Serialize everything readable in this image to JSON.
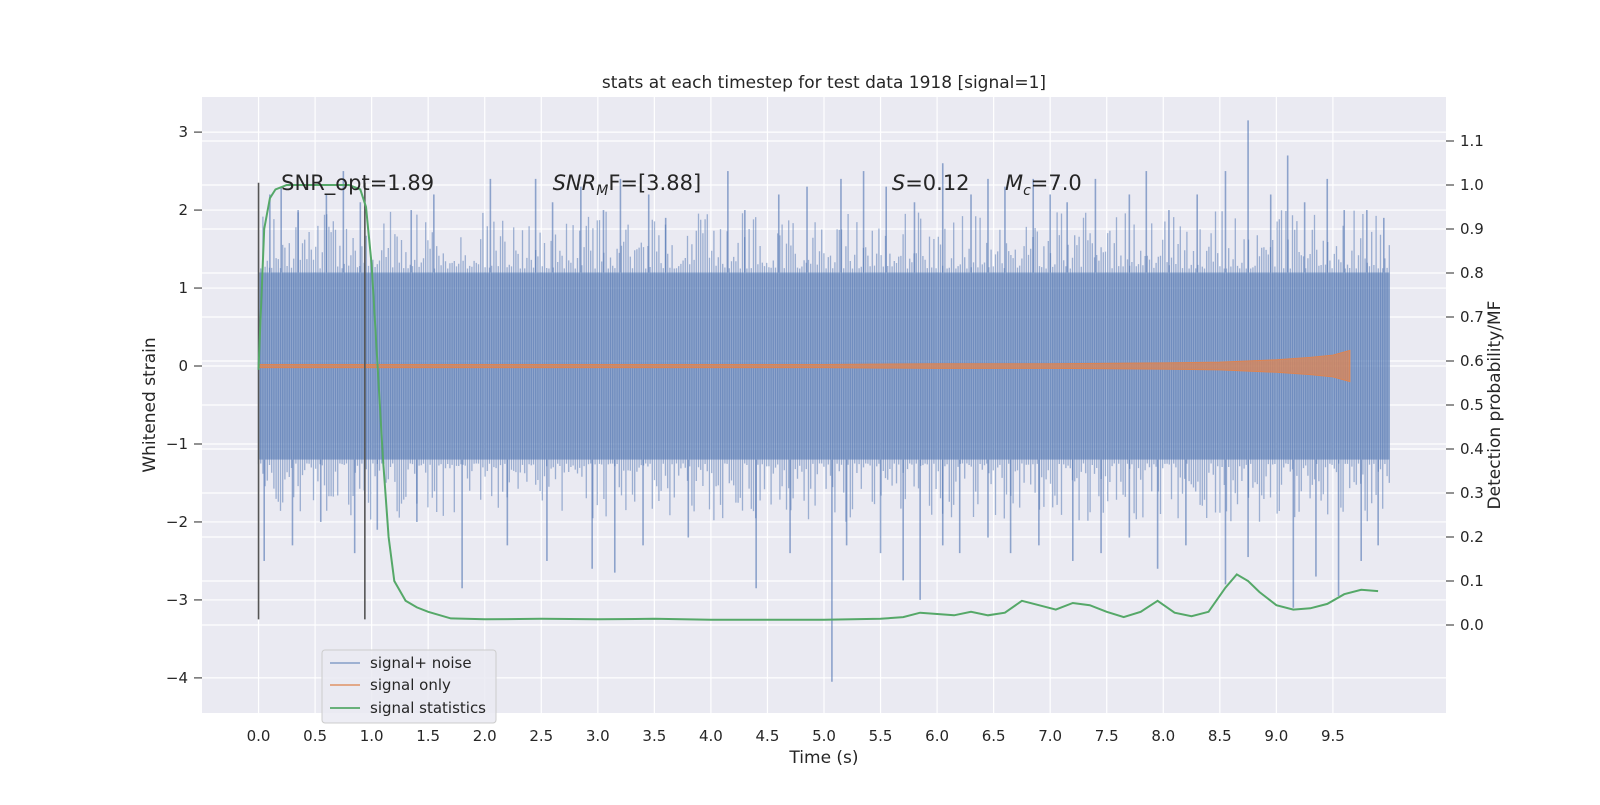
{
  "chart_data": {
    "type": "line",
    "title": "stats at each timestep for test data 1918 [signal=1]",
    "xlabel": "Time (s)",
    "ylabel_left": "Whitened strain",
    "ylabel_right": "Detection probability/MF",
    "xlim": [
      -0.5,
      10.5
    ],
    "ylim_left": [
      -4.45,
      3.45
    ],
    "ylim_right": [
      -0.2,
      1.2
    ],
    "x_ticks": [
      "0.0",
      "0.5",
      "1.0",
      "1.5",
      "2.0",
      "2.5",
      "3.0",
      "3.5",
      "4.0",
      "4.5",
      "5.0",
      "5.5",
      "6.0",
      "6.5",
      "7.0",
      "7.5",
      "8.0",
      "8.5",
      "9.0",
      "9.5"
    ],
    "y_left_ticks": [
      "3",
      "2",
      "1",
      "0",
      "−1",
      "−2",
      "−3",
      "−4"
    ],
    "y_right_ticks": [
      "1.1",
      "1.0",
      "0.9",
      "0.8",
      "0.7",
      "0.6",
      "0.5",
      "0.4",
      "0.3",
      "0.2",
      "0.1",
      "0.0"
    ],
    "grid": true,
    "legend_position": "lower-left",
    "annotations": [
      {
        "label": "SNR_opt=1.89",
        "x": 0.2,
        "y": 2.35
      },
      {
        "label": "SNR",
        "sub": "M",
        "tail": "F=[3.88]",
        "italic": true,
        "x": 2.6,
        "y": 2.35
      },
      {
        "label": "S",
        "tail": "=0.12",
        "italic": true,
        "x": 5.6,
        "y": 2.35
      },
      {
        "label": "M",
        "sub": "c",
        "tail": "=7.0",
        "italic": true,
        "x": 6.6,
        "y": 2.35
      }
    ],
    "vlines": [
      {
        "x": 0.0,
        "y_range": [
          -3.25,
          2.35
        ]
      },
      {
        "x": 0.94,
        "y_range": [
          -3.25,
          2.35
        ]
      }
    ],
    "series": [
      {
        "name": "signal+ noise",
        "color": "#4c72b0",
        "axis": "left",
        "kind": "noise_band",
        "x_range": [
          0.0,
          10.0
        ],
        "core_abs": 1.2,
        "spikes_up": [
          [
            0.1,
            2.2
          ],
          [
            0.2,
            2.3
          ],
          [
            0.35,
            2.0
          ],
          [
            0.6,
            2.2
          ],
          [
            0.75,
            2.5
          ],
          [
            0.9,
            2.1
          ],
          [
            1.35,
            2.0
          ],
          [
            1.55,
            2.2
          ],
          [
            2.05,
            2.4
          ],
          [
            2.45,
            2.4
          ],
          [
            2.6,
            2.1
          ],
          [
            2.85,
            2.3
          ],
          [
            3.05,
            2.0
          ],
          [
            3.2,
            2.4
          ],
          [
            3.45,
            2.2
          ],
          [
            3.6,
            1.9
          ],
          [
            4.15,
            2.5
          ],
          [
            4.3,
            2.0
          ],
          [
            4.6,
            2.2
          ],
          [
            4.85,
            2.3
          ],
          [
            5.15,
            2.4
          ],
          [
            5.35,
            2.5
          ],
          [
            5.55,
            2.3
          ],
          [
            5.8,
            2.1
          ],
          [
            6.05,
            2.6
          ],
          [
            6.3,
            2.2
          ],
          [
            6.45,
            2.4
          ],
          [
            6.6,
            2.3
          ],
          [
            6.85,
            2.4
          ],
          [
            7.0,
            2.2
          ],
          [
            7.15,
            2.1
          ],
          [
            7.4,
            2.4
          ],
          [
            7.7,
            2.2
          ],
          [
            7.85,
            2.5
          ],
          [
            8.05,
            2.0
          ],
          [
            8.3,
            2.2
          ],
          [
            8.55,
            2.5
          ],
          [
            8.75,
            3.15
          ],
          [
            8.95,
            2.2
          ],
          [
            9.1,
            2.7
          ],
          [
            9.25,
            2.1
          ],
          [
            9.45,
            2.4
          ],
          [
            9.6,
            2.0
          ],
          [
            9.8,
            2.0
          ],
          [
            9.95,
            1.9
          ]
        ],
        "spikes_down": [
          [
            0.05,
            -2.5
          ],
          [
            0.3,
            -2.3
          ],
          [
            0.55,
            -2.0
          ],
          [
            0.85,
            -2.4
          ],
          [
            1.05,
            -2.1
          ],
          [
            1.4,
            -2.0
          ],
          [
            1.8,
            -2.85
          ],
          [
            2.2,
            -2.3
          ],
          [
            2.55,
            -2.5
          ],
          [
            2.95,
            -2.6
          ],
          [
            3.15,
            -2.65
          ],
          [
            3.4,
            -2.3
          ],
          [
            3.8,
            -2.2
          ],
          [
            4.4,
            -2.85
          ],
          [
            4.7,
            -2.4
          ],
          [
            5.07,
            -4.05
          ],
          [
            5.2,
            -2.3
          ],
          [
            5.5,
            -2.4
          ],
          [
            5.7,
            -2.75
          ],
          [
            5.85,
            -3.0
          ],
          [
            6.05,
            -2.3
          ],
          [
            6.2,
            -2.4
          ],
          [
            6.45,
            -2.2
          ],
          [
            6.65,
            -2.4
          ],
          [
            6.9,
            -2.3
          ],
          [
            7.2,
            -2.5
          ],
          [
            7.45,
            -2.4
          ],
          [
            7.7,
            -2.2
          ],
          [
            7.95,
            -2.6
          ],
          [
            8.2,
            -2.3
          ],
          [
            8.55,
            -2.8
          ],
          [
            8.75,
            -2.45
          ],
          [
            9.15,
            -3.1
          ],
          [
            9.35,
            -2.7
          ],
          [
            9.55,
            -2.95
          ],
          [
            9.75,
            -2.5
          ],
          [
            9.9,
            -2.3
          ]
        ]
      },
      {
        "name": "signal only",
        "color": "#dd8452",
        "axis": "left",
        "kind": "chirp",
        "x": [
          0.0,
          1.0,
          2.0,
          3.0,
          4.0,
          5.0,
          6.0,
          7.0,
          8.0,
          8.5,
          9.0,
          9.3,
          9.5,
          9.65
        ],
        "envelope": [
          0.02,
          0.02,
          0.02,
          0.02,
          0.02,
          0.02,
          0.03,
          0.03,
          0.04,
          0.05,
          0.08,
          0.11,
          0.14,
          0.2
        ]
      },
      {
        "name": "signal statistics",
        "color": "#55a868",
        "axis": "right",
        "kind": "line",
        "x": [
          0.0,
          0.05,
          0.1,
          0.15,
          0.25,
          0.4,
          0.6,
          0.8,
          0.9,
          0.95,
          1.0,
          1.05,
          1.1,
          1.15,
          1.2,
          1.3,
          1.4,
          1.5,
          1.7,
          2.0,
          2.5,
          3.0,
          3.5,
          4.0,
          4.5,
          5.0,
          5.5,
          5.7,
          5.85,
          6.0,
          6.15,
          6.3,
          6.45,
          6.6,
          6.75,
          6.9,
          7.05,
          7.2,
          7.35,
          7.5,
          7.65,
          7.8,
          7.95,
          8.1,
          8.25,
          8.4,
          8.55,
          8.65,
          8.75,
          8.85,
          9.0,
          9.15,
          9.3,
          9.45,
          9.6,
          9.75,
          9.9
        ],
        "y": [
          0.58,
          0.9,
          0.97,
          0.99,
          1.0,
          1.0,
          1.0,
          1.0,
          0.99,
          0.95,
          0.82,
          0.6,
          0.38,
          0.2,
          0.1,
          0.055,
          0.04,
          0.03,
          0.015,
          0.013,
          0.014,
          0.013,
          0.014,
          0.012,
          0.012,
          0.012,
          0.014,
          0.018,
          0.028,
          0.025,
          0.022,
          0.03,
          0.022,
          0.028,
          0.055,
          0.045,
          0.035,
          0.05,
          0.045,
          0.03,
          0.018,
          0.03,
          0.055,
          0.028,
          0.02,
          0.03,
          0.085,
          0.115,
          0.1,
          0.075,
          0.045,
          0.035,
          0.038,
          0.048,
          0.07,
          0.08,
          0.077
        ]
      }
    ]
  }
}
